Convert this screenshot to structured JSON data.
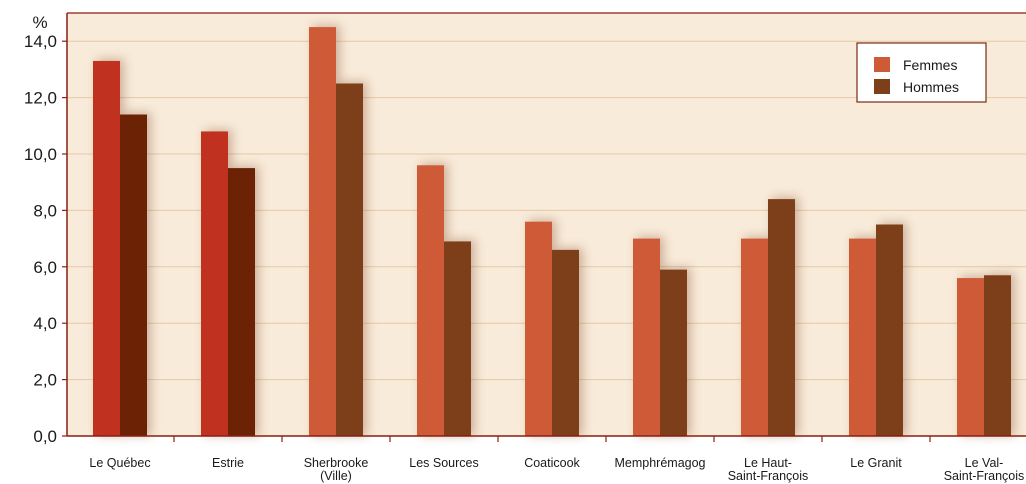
{
  "chart_data": {
    "type": "bar",
    "ylabel": "%",
    "ylim": [
      0,
      15
    ],
    "yticks": [
      "0,0",
      "2,0",
      "4,0",
      "6,0",
      "8,0",
      "10,0",
      "12,0",
      "14,0"
    ],
    "categories": [
      [
        "Le Québec"
      ],
      [
        "Estrie"
      ],
      [
        "Sherbrooke",
        "(Ville)"
      ],
      [
        "Les Sources"
      ],
      [
        "Coaticook"
      ],
      [
        "Memphrémagog"
      ],
      [
        "Le Haut-",
        "Saint-François"
      ],
      [
        "Le Granit"
      ],
      [
        "Le Val-",
        "Saint-François"
      ]
    ],
    "series": [
      {
        "name": "Femmes",
        "values": [
          13.3,
          10.8,
          14.5,
          9.6,
          7.6,
          7.0,
          7.0,
          7.0,
          5.6
        ]
      },
      {
        "name": "Hommes",
        "values": [
          11.4,
          9.5,
          12.5,
          6.9,
          6.6,
          5.9,
          8.4,
          7.5,
          5.7
        ]
      }
    ],
    "legend_position": "top-right",
    "grid": true,
    "colors": {
      "plot_bg": "#f8ebd9",
      "grid": "#e6c9a8",
      "axis": "#8a1f10",
      "femmes_highlight": "#c0311f",
      "hommes_highlight": "#6b2205",
      "femmes": "#cf5a38",
      "hommes": "#7d3f1a"
    },
    "highlight_categories": 2
  }
}
